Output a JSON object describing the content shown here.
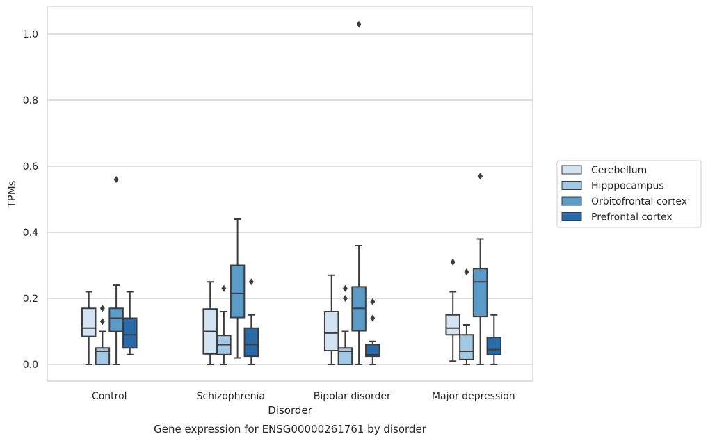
{
  "chart_data": {
    "type": "box",
    "title": "",
    "xlabel": "Disorder",
    "ylabel": "TPMs",
    "caption": "Gene expression for ENSG00000261761 by disorder",
    "ylim": [
      -0.05,
      1.08
    ],
    "yticks": [
      "0.0",
      "0.2",
      "0.4",
      "0.6",
      "0.8",
      "1.0"
    ],
    "grid": "horizontal",
    "legend_position": "right",
    "categories": [
      "Control",
      "Schizophrenia",
      "Bipolar disorder",
      "Major depression"
    ],
    "series": [
      {
        "name": "Cerebellum",
        "color": "#d4e3f2",
        "boxes": [
          {
            "min": 0.0,
            "q1": 0.085,
            "median": 0.11,
            "q3": 0.17,
            "max": 0.22,
            "outliers": []
          },
          {
            "min": 0.0,
            "q1": 0.032,
            "median": 0.1,
            "q3": 0.168,
            "max": 0.25,
            "outliers": []
          },
          {
            "min": 0.0,
            "q1": 0.042,
            "median": 0.095,
            "q3": 0.16,
            "max": 0.27,
            "outliers": []
          },
          {
            "min": 0.01,
            "q1": 0.09,
            "median": 0.11,
            "q3": 0.15,
            "max": 0.22,
            "outliers": [
              0.31
            ]
          }
        ]
      },
      {
        "name": "Hipppocampus",
        "color": "#a3c8e1",
        "boxes": [
          {
            "min": 0.0,
            "q1": 0.0,
            "median": 0.04,
            "q3": 0.05,
            "max": 0.1,
            "outliers": [
              0.13,
              0.17
            ]
          },
          {
            "min": 0.0,
            "q1": 0.03,
            "median": 0.06,
            "q3": 0.088,
            "max": 0.16,
            "outliers": [
              0.23
            ]
          },
          {
            "min": 0.0,
            "q1": 0.0,
            "median": 0.04,
            "q3": 0.05,
            "max": 0.1,
            "outliers": [
              0.2,
              0.23
            ]
          },
          {
            "min": 0.0,
            "q1": 0.015,
            "median": 0.04,
            "q3": 0.09,
            "max": 0.12,
            "outliers": [
              0.28
            ]
          }
        ]
      },
      {
        "name": "Orbitofrontal cortex",
        "color": "#5b9bc8",
        "boxes": [
          {
            "min": 0.0,
            "q1": 0.1,
            "median": 0.14,
            "q3": 0.17,
            "max": 0.24,
            "outliers": [
              0.56
            ]
          },
          {
            "min": 0.02,
            "q1": 0.142,
            "median": 0.215,
            "q3": 0.3,
            "max": 0.44,
            "outliers": []
          },
          {
            "min": 0.0,
            "q1": 0.102,
            "median": 0.17,
            "q3": 0.235,
            "max": 0.36,
            "outliers": [
              1.03
            ]
          },
          {
            "min": 0.0,
            "q1": 0.145,
            "median": 0.25,
            "q3": 0.29,
            "max": 0.38,
            "outliers": [
              0.57
            ]
          }
        ]
      },
      {
        "name": "Prefrontal cortex",
        "color": "#2a6aa8",
        "boxes": [
          {
            "min": 0.03,
            "q1": 0.05,
            "median": 0.09,
            "q3": 0.14,
            "max": 0.22,
            "outliers": []
          },
          {
            "min": 0.0,
            "q1": 0.025,
            "median": 0.06,
            "q3": 0.11,
            "max": 0.15,
            "outliers": [
              0.25
            ]
          },
          {
            "min": 0.0,
            "q1": 0.025,
            "median": 0.03,
            "q3": 0.06,
            "max": 0.07,
            "outliers": [
              0.14,
              0.19
            ]
          },
          {
            "min": 0.0,
            "q1": 0.03,
            "median": 0.045,
            "q3": 0.082,
            "max": 0.15,
            "outliers": []
          }
        ]
      }
    ]
  }
}
